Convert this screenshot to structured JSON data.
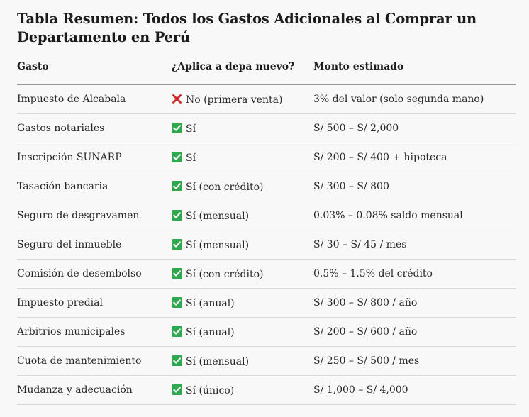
{
  "title": "Tabla Resumen: Todos los Gastos Adicionales al Comprar un Departamento en Perú",
  "headers": [
    "Gasto",
    "¿Aplica a depa nuevo?",
    "Monto estimado"
  ],
  "rows": [
    {
      "gasto": "Impuesto de Alcabala",
      "icon": "cross-mark-icon",
      "aplica": "No (primera venta)",
      "monto": "3% del valor (solo segunda mano)"
    },
    {
      "gasto": "Gastos notariales",
      "icon": "check-mark-icon",
      "aplica": "Sí",
      "monto": "S/ 500 – S/ 2,000"
    },
    {
      "gasto": "Inscripción SUNARP",
      "icon": "check-mark-icon",
      "aplica": "Sí",
      "monto": "S/ 200 – S/ 400 + hipoteca"
    },
    {
      "gasto": "Tasación bancaria",
      "icon": "check-mark-icon",
      "aplica": "Sí (con crédito)",
      "monto": "S/ 300 – S/ 800"
    },
    {
      "gasto": "Seguro de desgravamen",
      "icon": "check-mark-icon",
      "aplica": "Sí (mensual)",
      "monto": "0.03% – 0.08% saldo mensual"
    },
    {
      "gasto": "Seguro del inmueble",
      "icon": "check-mark-icon",
      "aplica": "Sí (mensual)",
      "monto": "S/ 30 – S/ 45 / mes"
    },
    {
      "gasto": "Comisión de desembolso",
      "icon": "check-mark-icon",
      "aplica": "Sí (con crédito)",
      "monto": "0.5% – 1.5% del crédito"
    },
    {
      "gasto": "Impuesto predial",
      "icon": "check-mark-icon",
      "aplica": "Sí (anual)",
      "monto": "S/ 300 – S/ 800 / año"
    },
    {
      "gasto": "Arbitrios municipales",
      "icon": "check-mark-icon",
      "aplica": "Sí (anual)",
      "monto": "S/ 200 – S/ 600 / año"
    },
    {
      "gasto": "Cuota de mantenimiento",
      "icon": "check-mark-icon",
      "aplica": "Sí (mensual)",
      "monto": "S/ 250 – S/ 500 / mes"
    },
    {
      "gasto": "Mudanza y adecuación",
      "icon": "check-mark-icon",
      "aplica": "Sí (único)",
      "monto": "S/ 1,000 – S/ 4,000"
    }
  ],
  "colors": {
    "check_bg": "#2fa84f",
    "cross": "#d32f2f"
  }
}
